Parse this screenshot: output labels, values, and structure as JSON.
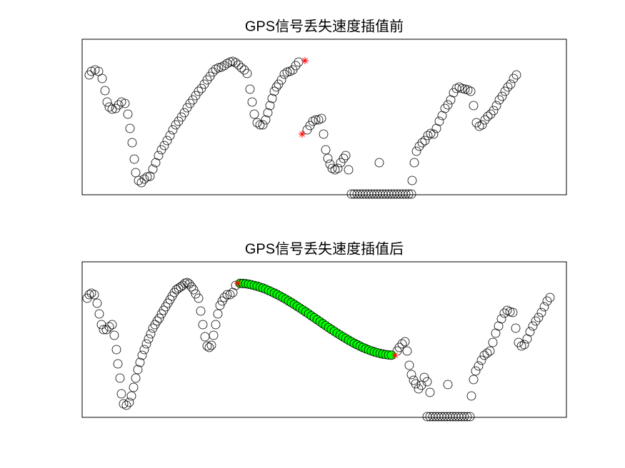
{
  "chart_data": [
    {
      "type": "scatter",
      "title": "GPS信号丢失速度插值前",
      "xlim": [
        0,
        678
      ],
      "ylim": [
        0,
        218
      ],
      "box": true,
      "series": [
        {
          "marker": "circle",
          "color": "#000000",
          "x": [
            10,
            13,
            18,
            23,
            28,
            32,
            35,
            38,
            42,
            47,
            51,
            55,
            60,
            64,
            67,
            70,
            73,
            75,
            79,
            83,
            87,
            91,
            95,
            99,
            103,
            107,
            111,
            115,
            119,
            123,
            127,
            131,
            135,
            139,
            143,
            147,
            151,
            155,
            159,
            163,
            167,
            171,
            175,
            179,
            183,
            187,
            191,
            195,
            199,
            203,
            207,
            211,
            215,
            219,
            223,
            227,
            231,
            235,
            238,
            241,
            245,
            249,
            253,
            257,
            260,
            263,
            266,
            269,
            272,
            275,
            279,
            283,
            287,
            291,
            295,
            299,
            303,
            315,
            319,
            323,
            327,
            331,
            335,
            338,
            341,
            344,
            347,
            350,
            354,
            358,
            362,
            366,
            369,
            373,
            377,
            381,
            385,
            389,
            393,
            397,
            401,
            405,
            409,
            413,
            417,
            421,
            425,
            429,
            433,
            437,
            441,
            445,
            449,
            453,
            457,
            461,
            416,
            462,
            465,
            468,
            472,
            476,
            480,
            484,
            488,
            492,
            496,
            500,
            504,
            508,
            512,
            516,
            520,
            524,
            528,
            532,
            536,
            540,
            544,
            548,
            552,
            556,
            560,
            564,
            568,
            572,
            576,
            580,
            584,
            588,
            592,
            596,
            600,
            604,
            608
          ],
          "y": [
            168,
            173,
            175,
            173,
            163,
            146,
            130,
            123,
            120,
            121,
            126,
            130,
            128,
            113,
            93,
            73,
            50,
            31,
            20,
            17,
            22,
            25,
            26,
            36,
            45,
            55,
            63,
            69,
            76,
            83,
            91,
            98,
            103,
            109,
            115,
            122,
            128,
            133,
            139,
            145,
            149,
            155,
            161,
            166,
            172,
            176,
            178,
            179,
            181,
            184,
            186,
            187,
            185,
            182,
            178,
            175,
            170,
            148,
            130,
            113,
            101,
            98,
            98,
            105,
            115,
            125,
            135,
            145,
            151,
            155,
            161,
            169,
            172,
            173,
            175,
            181,
            186,
            91,
            97,
            103,
            105,
            105,
            107,
            85,
            63,
            51,
            43,
            37,
            35,
            37,
            45,
            51,
            55,
            35,
            1,
            1,
            1,
            1,
            1,
            1,
            1,
            1,
            1,
            1,
            1,
            1,
            1,
            1,
            1,
            1,
            1,
            1,
            1,
            1,
            1,
            1,
            45,
            20,
            45,
            61,
            68,
            73,
            76,
            83,
            86,
            85,
            93,
            103,
            111,
            121,
            126,
            133,
            143,
            149,
            151,
            149,
            148,
            147,
            145,
            125,
            101,
            96,
            98,
            105,
            110,
            113,
            118,
            125,
            133,
            138,
            145,
            151,
            155,
            163,
            168
          ]
        },
        {
          "marker": "star",
          "color": "#ff0000",
          "x": [
            308,
            312
          ],
          "y": [
            85,
            188
          ]
        }
      ]
    },
    {
      "type": "scatter",
      "title": "GPS信号丢失速度插值后",
      "xlim": [
        0,
        678
      ],
      "ylim": [
        0,
        218
      ],
      "box": true,
      "series": [
        {
          "marker": "circle",
          "color": "#000000",
          "x": [
            7,
            10,
            13,
            17,
            21,
            24,
            27,
            30,
            34,
            38,
            42,
            45,
            48,
            50,
            53,
            55,
            58,
            62,
            66,
            69,
            72,
            75,
            78,
            81,
            84,
            87,
            90,
            93,
            96,
            99,
            102,
            105,
            108,
            111,
            114,
            117,
            120,
            123,
            126,
            129,
            132,
            135,
            138,
            141,
            144,
            147,
            150,
            153,
            156,
            159,
            163,
            166,
            169,
            172,
            175,
            178,
            181,
            184,
            187,
            190,
            193,
            196,
            199,
            203,
            207,
            211,
            215,
            441,
            444,
            448,
            452,
            455,
            458,
            461,
            464,
            467,
            471,
            475,
            479,
            483,
            487,
            483,
            487,
            491,
            495,
            499,
            503,
            507,
            511,
            515,
            519,
            523,
            527,
            531,
            535,
            539,
            543,
            512,
            545,
            548,
            551,
            555,
            559,
            563,
            567,
            571,
            575,
            579,
            583,
            587,
            591,
            595,
            599,
            603,
            607,
            611,
            615,
            619,
            623,
            627,
            631,
            635,
            639,
            643,
            647,
            651,
            655
          ],
          "y": [
            167,
            172,
            174,
            172,
            160,
            145,
            130,
            123,
            123,
            127,
            130,
            115,
            95,
            75,
            55,
            33,
            19,
            17,
            21,
            30,
            42,
            55,
            67,
            77,
            87,
            95,
            103,
            110,
            117,
            125,
            130,
            135,
            139,
            145,
            150,
            155,
            160,
            165,
            170,
            175,
            179,
            181,
            183,
            185,
            188,
            189,
            187,
            183,
            179,
            173,
            167,
            149,
            130,
            113,
            100,
            98,
            101,
            115,
            130,
            145,
            157,
            163,
            168,
            172,
            172,
            175,
            185,
            93,
            98,
            103,
            106,
            93,
            73,
            60,
            52,
            47,
            40,
            45,
            56,
            50,
            35,
            1,
            1,
            1,
            1,
            1,
            1,
            1,
            1,
            1,
            1,
            1,
            1,
            1,
            1,
            1,
            1,
            46,
            30,
            53,
            65,
            72,
            80,
            87,
            90,
            93,
            105,
            118,
            128,
            138,
            146,
            150,
            148,
            147,
            125,
            105,
            100,
            102,
            110,
            120,
            128,
            135,
            140,
            147,
            155,
            163,
            168
          ]
        },
        {
          "marker": "circle",
          "color": "#000000",
          "fill": "#00ff00",
          "x": [
            221,
            225,
            229,
            233,
            237,
            241,
            245,
            249,
            253,
            257,
            261,
            265,
            269,
            273,
            277,
            281,
            285,
            289,
            293,
            297,
            301,
            305,
            309,
            313,
            317,
            321,
            325,
            329,
            333,
            337,
            341,
            345,
            349,
            353,
            357,
            361,
            365,
            369,
            373,
            377,
            381,
            385,
            389,
            393,
            397,
            401,
            405,
            409,
            413,
            417,
            421,
            425,
            429,
            433
          ],
          "y": [
            187.9,
            187.7,
            187.3,
            186.7,
            185.9,
            184.9,
            183.8,
            182.5,
            181.2,
            179.6,
            177.9,
            176.1,
            174.2,
            172.2,
            170.1,
            167.9,
            165.6,
            163.2,
            160.8,
            158.3,
            155.7,
            153.1,
            150.5,
            147.8,
            145.1,
            142.3,
            139.6,
            136.8,
            134.1,
            131.3,
            128.6,
            125.9,
            123.2,
            120.6,
            118.0,
            115.5,
            113.0,
            110.6,
            108.2,
            106.0,
            103.8,
            101.8,
            99.8,
            97.9,
            96.2,
            94.6,
            93.1,
            91.8,
            90.6,
            89.6,
            88.7,
            88.0,
            87.5,
            87.2
          ]
        },
        {
          "marker": "star",
          "color": "#ff0000",
          "x": [
            218,
            438
          ],
          "y": [
            188,
            87
          ]
        }
      ]
    }
  ]
}
